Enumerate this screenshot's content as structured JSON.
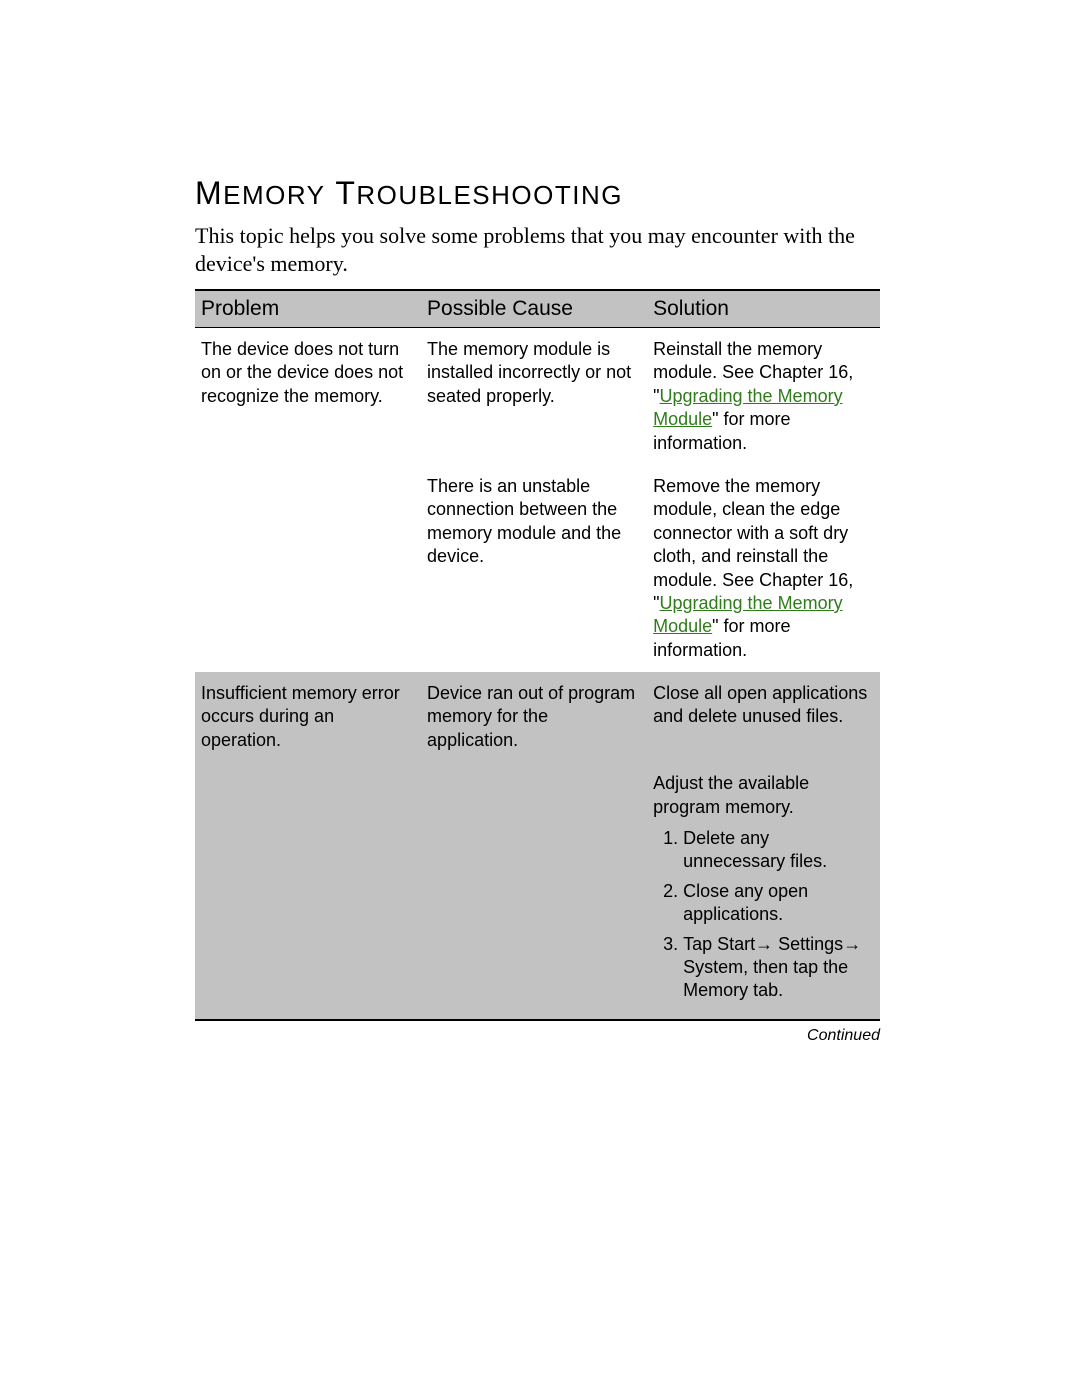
{
  "heading_html": "M<span style=\"font-size:26px\">EMORY</span> T<span style=\"font-size:26px\">ROUBLESHOOTING</span>",
  "intro": "This topic helps you solve some problems that you may encounter with the device's memory.",
  "headers": {
    "problem": "Problem",
    "cause": "Possible Cause",
    "solution": "Solution"
  },
  "rows": {
    "r1": {
      "problem": "The device does not turn on or the device does not recognize the memory.",
      "cause": "The memory module is installed incorrectly or not seated properly.",
      "solution_pre": "Reinstall the memory module. See Chapter 16, \"",
      "solution_link": "Upgrading the Memory Module",
      "solution_post": "\" for more information."
    },
    "r2": {
      "cause": "There is an unstable connection between the memory module and the device.",
      "solution_pre": "Remove the memory module, clean the edge connector with a soft dry cloth, and reinstall the module. See Chapter 16, \"",
      "solution_link": "Upgrading the Memory Module",
      "solution_post": "\" for more information."
    },
    "r3": {
      "problem": "Insufficient memory error occurs during an operation.",
      "cause": "Device ran out of program memory for the application.",
      "solution": "Close all open applications and delete unused files."
    },
    "r4": {
      "solution_intro": "Adjust the available program memory.",
      "steps": {
        "s1": "Delete any unnecessary files.",
        "s2": "Close any open applications.",
        "s3_html": "Tap Start<span class=\"arrow\">&#x2192;</span> Settings<span class=\"arrow\">&#x2192;</span> System, then tap the Memory tab."
      }
    }
  },
  "continued": "Continued",
  "colors": {
    "band_bg": "#c2c2c2",
    "link_color": "#2f7d1a",
    "text_color": "#000000",
    "page_bg": "#ffffff"
  },
  "fontsizes": {
    "heading": 32,
    "intro": 22,
    "th": 21,
    "td": 18,
    "continued": 16
  }
}
